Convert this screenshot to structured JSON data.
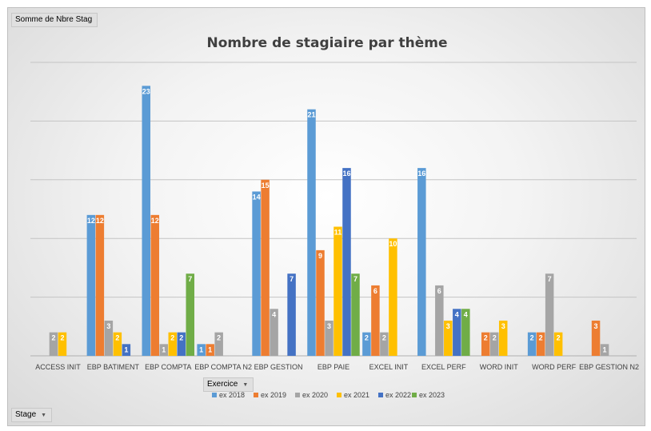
{
  "field_buttons": {
    "values_field": "Somme de Nbre Stag",
    "series_field": "Exercice",
    "axis_field": "Stage"
  },
  "chart_data": {
    "type": "bar",
    "title": "Nombre de stagiaire par thème",
    "xlabel": "",
    "ylabel": "",
    "ylim": [
      0,
      25
    ],
    "grid": true,
    "legend_position": "bottom",
    "categories": [
      "ACCESS INIT",
      "EBP BATIMENT",
      "EBP COMPTA",
      "EBP COMPTA N2",
      "EBP GESTION",
      "EBP PAIE",
      "EXCEL INIT",
      "EXCEL PERF",
      "WORD INIT",
      "WORD PERF",
      "EBP GESTION N2"
    ],
    "series": [
      {
        "name": "ex 2018",
        "color": "#5b9bd5",
        "values": [
          null,
          12,
          23,
          1,
          14,
          21,
          2,
          16,
          null,
          2,
          null
        ]
      },
      {
        "name": "ex 2019",
        "color": "#ed7d31",
        "values": [
          null,
          12,
          12,
          1,
          15,
          9,
          6,
          null,
          2,
          2,
          3
        ]
      },
      {
        "name": "ex 2020",
        "color": "#a5a5a5",
        "values": [
          2,
          3,
          1,
          2,
          4,
          3,
          2,
          6,
          2,
          7,
          1
        ]
      },
      {
        "name": "ex 2021",
        "color": "#ffc000",
        "values": [
          2,
          2,
          2,
          null,
          null,
          11,
          10,
          3,
          3,
          2,
          null
        ]
      },
      {
        "name": "ex 2022",
        "color": "#4472c4",
        "values": [
          null,
          1,
          2,
          null,
          7,
          16,
          null,
          4,
          null,
          null,
          null
        ]
      },
      {
        "name": "ex 2023",
        "color": "#70ad47",
        "values": [
          null,
          null,
          7,
          null,
          null,
          7,
          null,
          4,
          null,
          null,
          null
        ]
      }
    ]
  }
}
